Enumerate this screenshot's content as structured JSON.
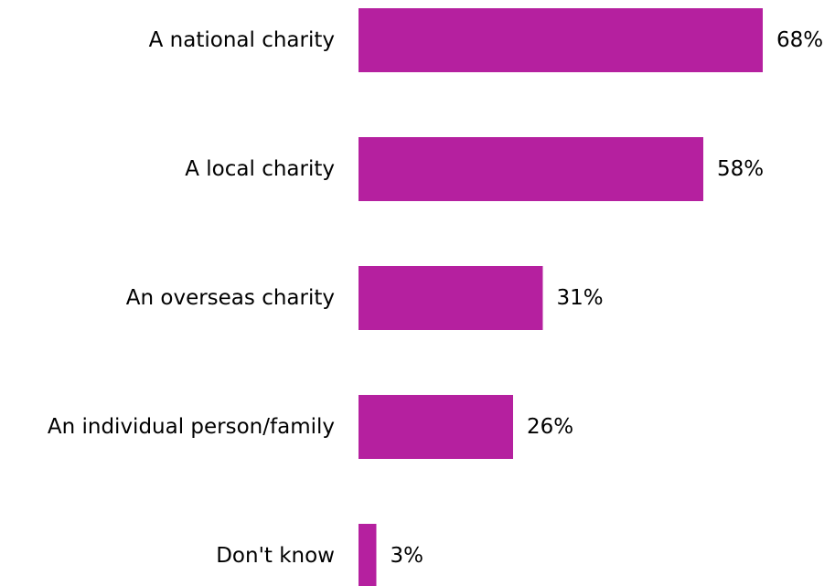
{
  "chart_data": {
    "type": "bar",
    "orientation": "horizontal",
    "categories": [
      "A national charity",
      "A local charity",
      "An overseas charity",
      "An individual person/family",
      "Don't know"
    ],
    "values": [
      68,
      58,
      31,
      26,
      3
    ],
    "value_labels": [
      "68%",
      "58%",
      "31%",
      "26%",
      "3%"
    ],
    "unit": "%",
    "xlim": [
      0,
      68
    ],
    "bar_color": "#b5209f",
    "grid": false,
    "legend": "none",
    "axes_visible": false
  }
}
